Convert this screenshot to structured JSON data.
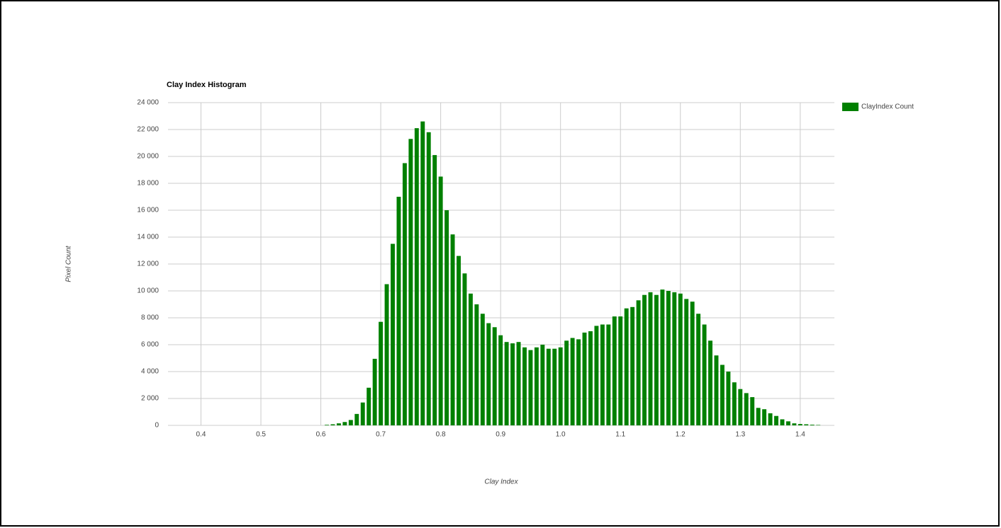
{
  "chart_data": {
    "type": "histogram",
    "title": "Clay Index Histogram",
    "x_label": "Clay Index",
    "y_label": "Pixel Count",
    "series": [
      {
        "name": "ClayIndex Count",
        "color": "#008000",
        "bins": [
          0.605,
          0.615,
          0.625,
          0.635,
          0.645,
          0.655,
          0.665,
          0.675,
          0.685,
          0.695,
          0.705,
          0.715,
          0.725,
          0.735,
          0.745,
          0.755,
          0.765,
          0.775,
          0.785,
          0.795,
          0.805,
          0.815,
          0.825,
          0.835,
          0.845,
          0.855,
          0.865,
          0.875,
          0.885,
          0.895,
          0.905,
          0.915,
          0.925,
          0.935,
          0.945,
          0.955,
          0.965,
          0.975,
          0.985,
          0.995,
          1.005,
          1.015,
          1.025,
          1.035,
          1.045,
          1.055,
          1.065,
          1.075,
          1.085,
          1.095,
          1.105,
          1.115,
          1.125,
          1.135,
          1.145,
          1.155,
          1.165,
          1.175,
          1.185,
          1.195,
          1.205,
          1.215,
          1.225,
          1.235,
          1.245,
          1.255,
          1.265,
          1.275,
          1.285,
          1.295,
          1.305,
          1.315,
          1.325,
          1.335,
          1.345,
          1.355,
          1.365,
          1.375,
          1.385,
          1.395,
          1.405,
          1.415,
          1.425,
          1.435
        ],
        "values": [
          40,
          80,
          150,
          250,
          400,
          850,
          1700,
          2800,
          4950,
          7700,
          10500,
          13500,
          17000,
          19500,
          21300,
          22100,
          22600,
          21800,
          20100,
          18500,
          16000,
          14200,
          12600,
          11300,
          9800,
          9000,
          8300,
          7600,
          7300,
          6700,
          6200,
          6100,
          6200,
          5800,
          5600,
          5800,
          6000,
          5700,
          5700,
          5800,
          6300,
          6500,
          6400,
          6900,
          7000,
          7400,
          7500,
          7500,
          8100,
          8100,
          8700,
          8800,
          9300,
          9700,
          9900,
          9700,
          10100,
          10000,
          9900,
          9800,
          9400,
          9200,
          8300,
          7500,
          6300,
          5200,
          4500,
          4000,
          3200,
          2700,
          2400,
          2100,
          1300,
          1200,
          900,
          700,
          450,
          300,
          150,
          100,
          80,
          50,
          30
        ]
      }
    ],
    "xlim": [
      0.345,
      1.457
    ],
    "xticks": [
      0.4,
      0.5,
      0.6,
      0.7,
      0.8,
      0.9,
      {
        "value": 1,
        "label": "1.0"
      },
      1.1,
      1.2,
      1.3,
      1.4
    ],
    "ylim": [
      0,
      24000
    ],
    "yticks": [
      0,
      {
        "value": 2000,
        "label": "2 000"
      },
      {
        "value": 4000,
        "label": "4 000"
      },
      {
        "value": 6000,
        "label": "6 000"
      },
      {
        "value": 8000,
        "label": "8 000"
      },
      {
        "value": 10000,
        "label": "10 000"
      },
      {
        "value": 12000,
        "label": "12 000"
      },
      {
        "value": 14000,
        "label": "14 000"
      },
      {
        "value": 16000,
        "label": "16 000"
      },
      {
        "value": 18000,
        "label": "18 000"
      },
      {
        "value": 20000,
        "label": "20 000"
      },
      {
        "value": 22000,
        "label": "22 000"
      },
      {
        "value": 24000,
        "label": "24 000"
      }
    ],
    "grid": true,
    "legend": "right"
  }
}
